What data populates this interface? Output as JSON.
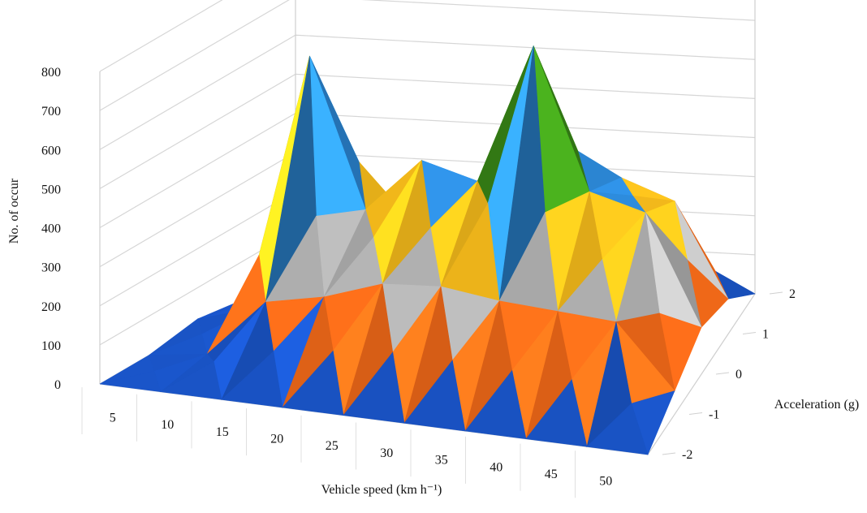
{
  "chart_data": {
    "type": "surface3d",
    "title": "",
    "xlabel": "Vehicle speed (km h⁻¹)",
    "ylabel": "Acceleration (g)",
    "zlabel": "No. of occur",
    "x": [
      5,
      10,
      15,
      20,
      25,
      30,
      35,
      40,
      45,
      50
    ],
    "y": [
      -2,
      -1,
      0,
      1,
      2
    ],
    "z_ticks": [
      0,
      100,
      200,
      300,
      400,
      500,
      600,
      700,
      800
    ],
    "zlim": [
      0,
      800
    ],
    "grid": true,
    "band_colors": [
      "#1a55c9",
      "#ff6f1a",
      "#b5b5b5",
      "#ffc21c",
      "#2e8ee0",
      "#3c8f18",
      "#0d1f6b",
      "#c41818"
    ],
    "values": [
      [
        0,
        0,
        20,
        0,
        0
      ],
      [
        0,
        20,
        60,
        40,
        0
      ],
      [
        0,
        170,
        720,
        360,
        0
      ],
      [
        0,
        200,
        340,
        240,
        0
      ],
      [
        0,
        250,
        480,
        280,
        0
      ],
      [
        0,
        260,
        440,
        300,
        0
      ],
      [
        0,
        240,
        800,
        340,
        0
      ],
      [
        0,
        230,
        440,
        380,
        0
      ],
      [
        0,
        220,
        400,
        330,
        0
      ],
      [
        0,
        60,
        120,
        90,
        0
      ]
    ]
  }
}
